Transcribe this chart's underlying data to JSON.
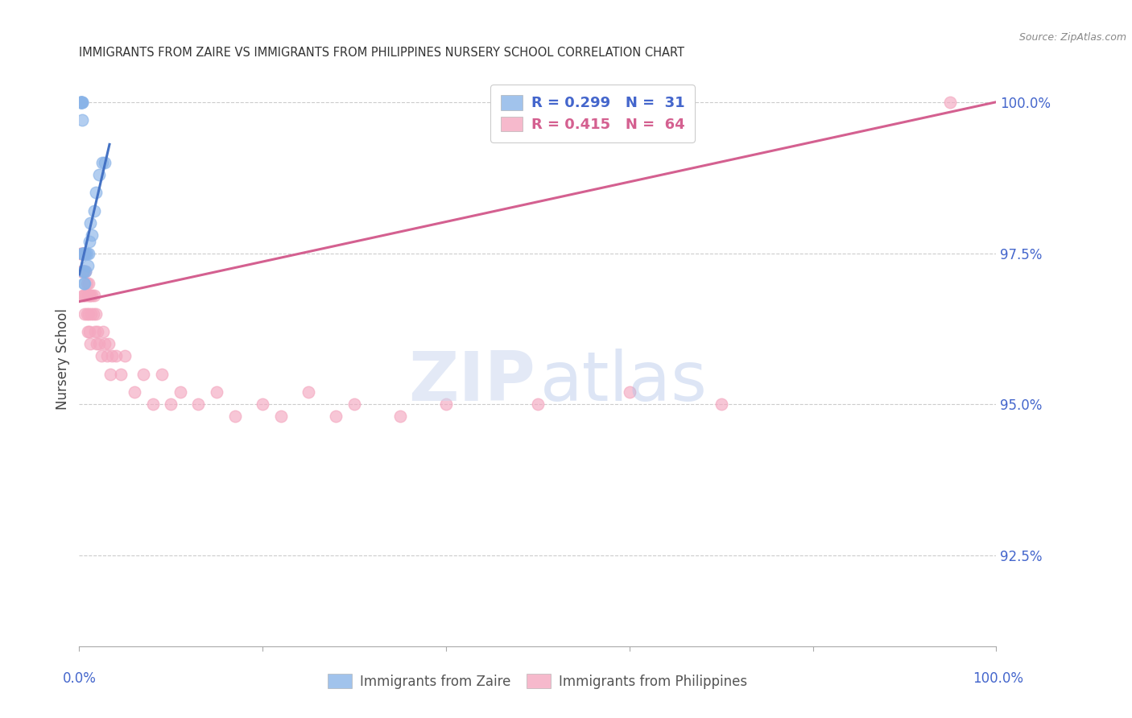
{
  "title": "IMMIGRANTS FROM ZAIRE VS IMMIGRANTS FROM PHILIPPINES NURSERY SCHOOL CORRELATION CHART",
  "source": "Source: ZipAtlas.com",
  "ylabel": "Nursery School",
  "right_yticks": [
    "100.0%",
    "97.5%",
    "95.0%",
    "92.5%"
  ],
  "right_ytick_values": [
    1.0,
    0.975,
    0.95,
    0.925
  ],
  "zaire_color": "#8ab4e8",
  "philippines_color": "#f4a8c0",
  "zaire_line_color": "#4472c4",
  "philippines_line_color": "#d46090",
  "background_color": "#ffffff",
  "grid_color": "#cccccc",
  "title_color": "#333333",
  "right_label_color": "#4466cc",
  "bottom_label_color": "#4466cc",
  "zaire_x": [
    0.001,
    0.001,
    0.002,
    0.002,
    0.002,
    0.003,
    0.003,
    0.003,
    0.003,
    0.004,
    0.004,
    0.004,
    0.005,
    0.005,
    0.005,
    0.005,
    0.006,
    0.006,
    0.007,
    0.007,
    0.008,
    0.009,
    0.01,
    0.011,
    0.012,
    0.014,
    0.016,
    0.018,
    0.022,
    0.025,
    0.028
  ],
  "zaire_y": [
    1.0,
    1.0,
    1.0,
    1.0,
    1.0,
    1.0,
    1.0,
    0.997,
    0.975,
    0.975,
    0.975,
    0.972,
    0.975,
    0.975,
    0.972,
    0.97,
    0.975,
    0.97,
    0.975,
    0.972,
    0.975,
    0.973,
    0.975,
    0.977,
    0.98,
    0.978,
    0.982,
    0.985,
    0.988,
    0.99,
    0.99
  ],
  "philippines_x": [
    0.001,
    0.002,
    0.002,
    0.003,
    0.003,
    0.004,
    0.004,
    0.004,
    0.005,
    0.005,
    0.005,
    0.006,
    0.006,
    0.007,
    0.007,
    0.008,
    0.008,
    0.009,
    0.009,
    0.01,
    0.01,
    0.011,
    0.011,
    0.012,
    0.012,
    0.013,
    0.014,
    0.015,
    0.016,
    0.017,
    0.018,
    0.019,
    0.02,
    0.022,
    0.024,
    0.026,
    0.028,
    0.03,
    0.032,
    0.034,
    0.036,
    0.04,
    0.045,
    0.05,
    0.06,
    0.07,
    0.08,
    0.09,
    0.1,
    0.11,
    0.13,
    0.15,
    0.17,
    0.2,
    0.22,
    0.25,
    0.28,
    0.3,
    0.35,
    0.4,
    0.5,
    0.6,
    0.7,
    0.95
  ],
  "philippines_y": [
    0.975,
    0.975,
    0.972,
    0.975,
    0.972,
    0.975,
    0.972,
    0.968,
    0.975,
    0.972,
    0.968,
    0.972,
    0.965,
    0.972,
    0.968,
    0.97,
    0.965,
    0.968,
    0.962,
    0.97,
    0.965,
    0.968,
    0.962,
    0.968,
    0.96,
    0.965,
    0.968,
    0.965,
    0.968,
    0.962,
    0.965,
    0.96,
    0.962,
    0.96,
    0.958,
    0.962,
    0.96,
    0.958,
    0.96,
    0.955,
    0.958,
    0.958,
    0.955,
    0.958,
    0.952,
    0.955,
    0.95,
    0.955,
    0.95,
    0.952,
    0.95,
    0.952,
    0.948,
    0.95,
    0.948,
    0.952,
    0.948,
    0.95,
    0.948,
    0.95,
    0.95,
    0.952,
    0.95,
    1.0
  ],
  "xlim": [
    0.0,
    1.0
  ],
  "ylim": [
    0.91,
    1.005
  ],
  "zaire_line_x": [
    0.0,
    0.033
  ],
  "zaire_line_y_start": 0.9715,
  "zaire_line_y_end": 0.993,
  "phil_line_x": [
    0.0,
    1.0
  ],
  "phil_line_y_start": 0.967,
  "phil_line_y_end": 1.0
}
